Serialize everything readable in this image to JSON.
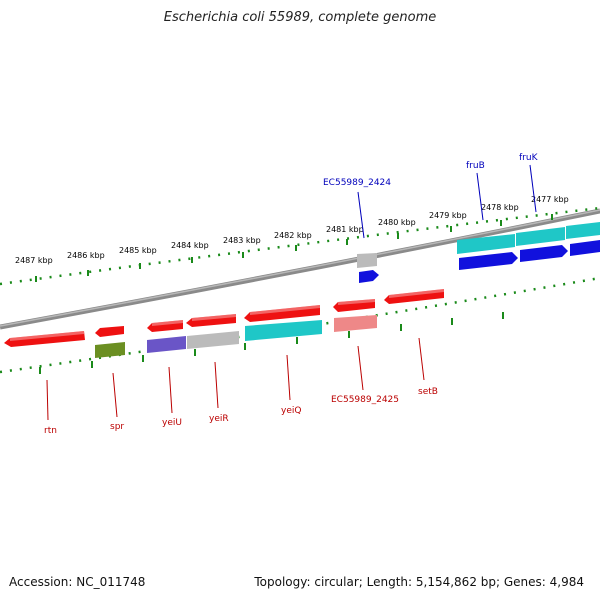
{
  "title": "Escherichia coli 55989, complete genome",
  "footer": {
    "accession": "Accession: NC_011748",
    "summary": "Topology: circular; Length: 5,154,862 bp; Genes: 4,984"
  },
  "colors": {
    "red": "#ee1111",
    "cyan": "#1fc7c7",
    "blue": "#1111dd",
    "grey": "#bbbbbb",
    "olive": "#6b8f22",
    "purple": "#6a55c7",
    "pink": "#ee8888",
    "tick": "#1a8a1a",
    "label_red": "#bb0000",
    "label_blue": "#0000bb",
    "backbone": "#888888"
  },
  "kbp_ticks": [
    {
      "label": "2487 kbp"
    },
    {
      "label": "2486 kbp"
    },
    {
      "label": "2485 kbp"
    },
    {
      "label": "2484 kbp"
    },
    {
      "label": "2483 kbp"
    },
    {
      "label": "2482 kbp"
    },
    {
      "label": "2481 kbp"
    },
    {
      "label": "2480 kbp"
    },
    {
      "label": "2479 kbp"
    },
    {
      "label": "2478 kbp"
    },
    {
      "label": "2477 kbp"
    }
  ],
  "genes": [
    {
      "name": "rtn",
      "strand": "-",
      "color": "red"
    },
    {
      "name": "spr",
      "strand": "-",
      "color": "red"
    },
    {
      "name": "yeiU",
      "strand": "-",
      "color": "red"
    },
    {
      "name": "yeiR",
      "strand": "-",
      "color": "red"
    },
    {
      "name": "yeiQ",
      "strand": "-",
      "color": "red"
    },
    {
      "name": "EC55989_2425",
      "strand": "-",
      "color": "red"
    },
    {
      "name": "setB",
      "strand": "-",
      "color": "red"
    },
    {
      "name": "EC55989_2424",
      "strand": "+",
      "color": "blue"
    },
    {
      "name": "fruB",
      "strand": "+",
      "color": "blue"
    },
    {
      "name": "fruK",
      "strand": "+",
      "color": "blue"
    }
  ]
}
